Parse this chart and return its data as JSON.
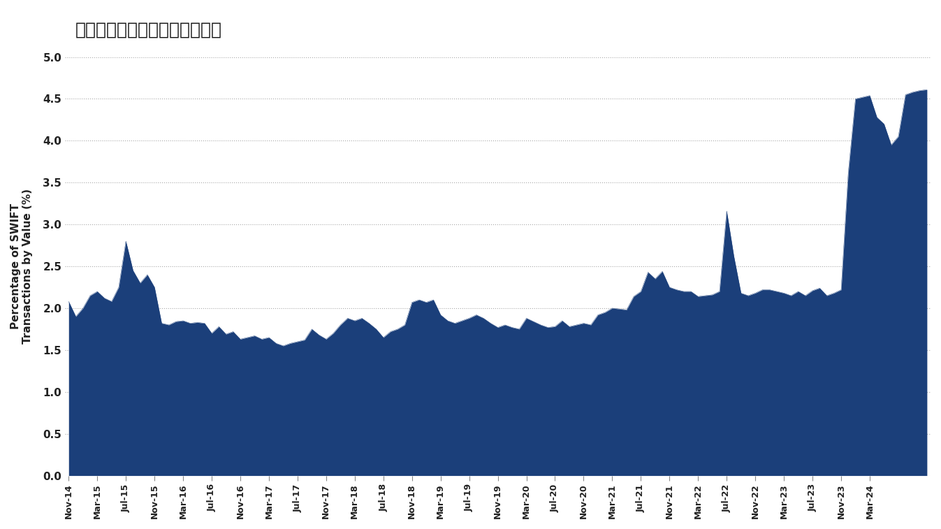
{
  "title": "过去一年人民币使用量翻了一番",
  "ylabel_line1": "Percentage of SWIFT",
  "ylabel_line2": "Transactions by Value (%)",
  "fill_color": "#1B3F7A",
  "background_color": "#ffffff",
  "ylim": [
    0,
    5.0
  ],
  "yticks": [
    0,
    0.5,
    1.0,
    1.5,
    2.0,
    2.5,
    3.0,
    3.5,
    4.0,
    4.5,
    5.0
  ],
  "x_labels": [
    "Nov-14",
    "Mar-15",
    "Jul-15",
    "Nov-15",
    "Mar-16",
    "Jul-16",
    "Nov-16",
    "Mar-17",
    "Jul-17",
    "Nov-17",
    "Mar-18",
    "Jul-18",
    "Nov-18",
    "Mar-19",
    "Jul-19",
    "Nov-19",
    "Mar-20",
    "Jul-20",
    "Nov-20",
    "Mar-21",
    "Jul-21",
    "Nov-21",
    "Mar-22",
    "Jul-22",
    "Nov-22",
    "Mar-23",
    "Jul-23",
    "Nov-23",
    "Mar-24"
  ],
  "x_label_months": [
    0,
    4,
    8,
    12,
    16,
    20,
    24,
    28,
    32,
    36,
    40,
    44,
    48,
    52,
    56,
    60,
    64,
    68,
    72,
    76,
    80,
    84,
    88,
    92,
    96,
    100,
    104,
    108,
    112
  ],
  "values": [
    2.08,
    1.9,
    2.0,
    2.15,
    2.2,
    2.12,
    2.08,
    2.25,
    2.8,
    2.45,
    2.3,
    2.4,
    2.25,
    1.82,
    1.8,
    1.84,
    1.85,
    1.82,
    1.83,
    1.82,
    1.7,
    1.78,
    1.69,
    1.72,
    1.63,
    1.65,
    1.67,
    1.63,
    1.65,
    1.58,
    1.55,
    1.58,
    1.6,
    1.62,
    1.75,
    1.68,
    1.63,
    1.7,
    1.8,
    1.88,
    1.85,
    1.88,
    1.82,
    1.75,
    1.65,
    1.72,
    1.75,
    1.8,
    2.07,
    2.1,
    2.07,
    2.1,
    1.92,
    1.85,
    1.82,
    1.85,
    1.88,
    1.92,
    1.88,
    1.82,
    1.77,
    1.8,
    1.77,
    1.75,
    1.88,
    1.84,
    1.8,
    1.77,
    1.78,
    1.85,
    1.78,
    1.8,
    1.82,
    1.8,
    1.92,
    1.95,
    2.0,
    1.99,
    1.98,
    2.14,
    2.2,
    2.43,
    2.35,
    2.44,
    2.25,
    2.22,
    2.2,
    2.2,
    2.14,
    2.15,
    2.16,
    2.2,
    3.16,
    2.62,
    2.18,
    2.15,
    2.18,
    2.22,
    2.22,
    2.2,
    2.18,
    2.15,
    2.2,
    2.15,
    2.21,
    2.24,
    2.15,
    2.18,
    2.22,
    3.62,
    4.5,
    4.52,
    4.54,
    4.28,
    4.2,
    3.95,
    4.05,
    4.55,
    4.58,
    4.6,
    4.61
  ]
}
